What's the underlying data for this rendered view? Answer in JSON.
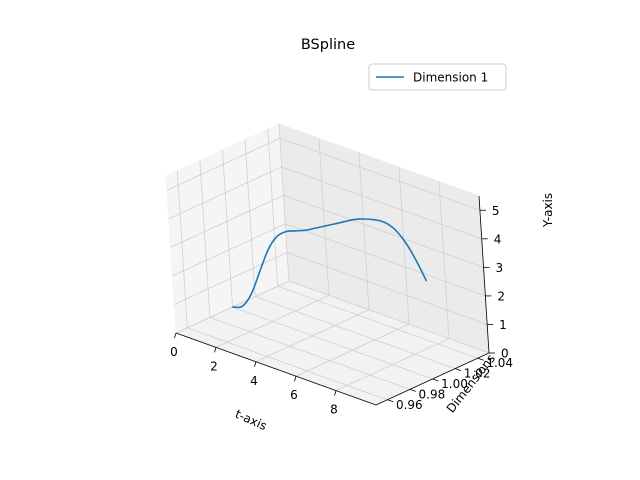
{
  "chart_data": {
    "type": "line",
    "projection": "3d",
    "title": "BSpline",
    "xlabel": "t-axis",
    "ylabel": "Dimensions",
    "zlabel": "Y-axis",
    "xlim": [
      0,
      10
    ],
    "ylim": [
      0.95,
      1.05
    ],
    "zlim": [
      0,
      5.5
    ],
    "x_ticks": [
      0,
      2,
      4,
      6,
      8
    ],
    "x_tick_labels": [
      "0",
      "2",
      "4",
      "6",
      "8"
    ],
    "y_ticks": [
      0.96,
      0.98,
      1.0,
      1.02,
      1.04
    ],
    "y_tick_labels": [
      "0.96",
      "0.98",
      "1.00",
      "1.02",
      "1.04"
    ],
    "z_ticks": [
      0,
      1,
      2,
      3,
      4,
      5
    ],
    "z_tick_labels": [
      "0",
      "1",
      "2",
      "3",
      "4",
      "5"
    ],
    "grid": true,
    "legend": "top-right",
    "series": [
      {
        "name": "Dimension 1",
        "color": "#1f77b4",
        "y_const": 1.0,
        "t": [
          0,
          0.5,
          1,
          1.5,
          2,
          2.5,
          3,
          3.5,
          4,
          4.5,
          5,
          5.5,
          6,
          6.5,
          7,
          7.5,
          8,
          8.5,
          9,
          9.5,
          10
        ],
        "values": [
          0.0,
          0.15,
          0.7,
          1.6,
          2.5,
          3.1,
          3.4,
          3.55,
          3.7,
          3.9,
          4.1,
          4.3,
          4.5,
          4.7,
          4.85,
          4.95,
          5.0,
          4.9,
          4.6,
          4.1,
          3.45
        ]
      }
    ]
  }
}
